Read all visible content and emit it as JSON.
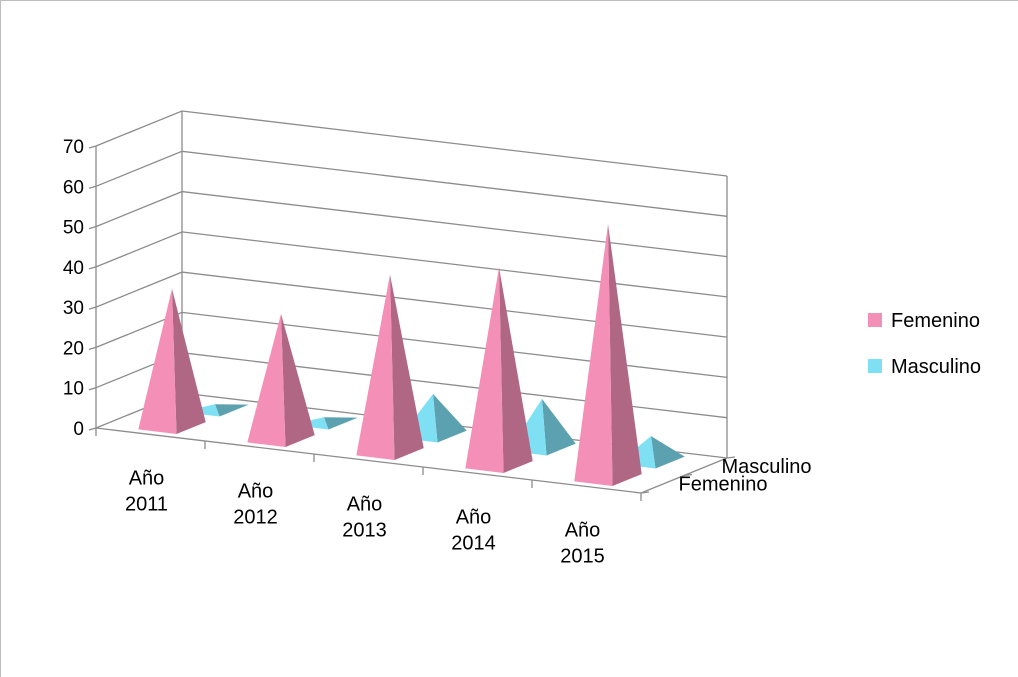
{
  "chart_data": {
    "type": "bar",
    "variant": "3d-pyramid",
    "categories": [
      "Año 2011",
      "Año 2012",
      "Año 2013",
      "Año 2014",
      "Año 2015"
    ],
    "category_lines": [
      [
        "Año",
        "2011"
      ],
      [
        "Año",
        "2012"
      ],
      [
        "Año",
        "2013"
      ],
      [
        "Año",
        "2014"
      ],
      [
        "Año",
        "2015"
      ]
    ],
    "series": [
      {
        "name": "Femenino",
        "values": [
          34,
          31,
          44,
          49,
          63
        ],
        "color": "#f48fb8"
      },
      {
        "name": "Masculino",
        "values": [
          1,
          1,
          10,
          12,
          6
        ],
        "color": "#7fe0f4"
      }
    ],
    "ylim": [
      0,
      70
    ],
    "yticks": [
      "0",
      "10",
      "20",
      "30",
      "40",
      "50",
      "60",
      "70"
    ],
    "depth_labels": [
      "Femenino",
      "Masculino"
    ],
    "grid": true,
    "legend_position": "right"
  }
}
